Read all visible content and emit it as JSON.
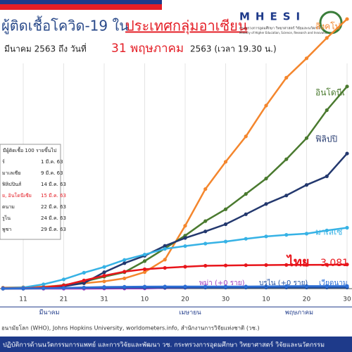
{
  "header": {
    "title": "ผู้ติดเชื้อโควิด-19 ใน",
    "title_highlight": "ประเทศกลุ่มอาเซียน",
    "subtitle_start": "มีนาคม 2563 ถึง วันที่",
    "subtitle_date": "31 พฤษภาคม",
    "subtitle_end": "2563 (เวลา 19.30 น.)",
    "logo": "MHESI",
    "ministry_th": "กระทรวงการอุดมศึกษา วิทยาศาสตร์ วิจัยและนวัตกรรม",
    "ministry_en": "Ministry of Higher Education, Science, Research and Innovation"
  },
  "inset": {
    "title": "มีผู้ติดเชื้อ 100 รายขึ้นไป",
    "rows": [
      [
        "ร์",
        "1 มี.ค. 63"
      ],
      [
        "มาเลเซีย",
        "9 มี.ค. 63"
      ],
      [
        "ฟิลิปปินส์",
        "14 มี.ค. 63"
      ],
      [
        "ย, อินโดนีเซีย",
        "15 มี.ค. 63"
      ],
      [
        "ดนาม",
        "22 มี.ค. 63"
      ],
      [
        "รูไน",
        "24 มี.ค. 63"
      ],
      [
        "พูชา",
        "29 มี.ค. 63"
      ]
    ]
  },
  "footer": {
    "source": "อนามัยโลก (WHO), Johns Hopkins University, worldometers.info, สำนักงานการวิจัยแห่งชาติ (วช.)",
    "bar": "ปฏิบัติการด้านนวัตกรรมการแพทย์ และการวิจัยและพัฒนา วช. กระทรวงการอุดมศึกษา วิทยาศาสตร์ วิจัยและนวัตกรรม"
  },
  "chart_data": {
    "type": "line",
    "categories": [
      null,
      "11",
      null,
      "21",
      null,
      "31",
      null,
      "10",
      null,
      "20",
      null,
      "30",
      null,
      "10",
      null,
      "20",
      null,
      "30"
    ],
    "months": [
      "มีนาคม",
      "เมษายน",
      "พฤษภาคม"
    ],
    "ylim": [
      0,
      35000
    ],
    "grid": true,
    "series": [
      {
        "name": "สิงคโป",
        "color": "#f4862d",
        "values": [
          130,
          178,
          243,
          432,
          683,
          926,
          1309,
          2108,
          3699,
          8014,
          12693,
          16169,
          19410,
          23336,
          26891,
          29364,
          31960,
          34366
        ]
      },
      {
        "name": "อินโดนีเ",
        "color": "#4a7a2f",
        "values": [
          2,
          34,
          134,
          450,
          893,
          1528,
          2092,
          3512,
          5136,
          6760,
          8607,
          10118,
          12071,
          14032,
          16496,
          19189,
          22750,
          25773
        ]
      },
      {
        "name": "ฟิลิปปิ",
        "color": "#23386e",
        "values": [
          5,
          49,
          142,
          307,
          707,
          2084,
          3246,
          4195,
          5453,
          6459,
          7294,
          8212,
          9485,
          10794,
          11876,
          13221,
          14319,
          17224
        ]
      },
      {
        "name": "มาเลเซี",
        "color": "#36b2e5",
        "values": [
          83,
          149,
          553,
          1183,
          2031,
          2766,
          3662,
          4346,
          5072,
          5425,
          5742,
          6002,
          6353,
          6656,
          6855,
          7009,
          7417,
          7762
        ]
      },
      {
        "name": "ไทย",
        "color": "#e8151b",
        "values": [
          48,
          59,
          147,
          411,
          1045,
          1651,
          2169,
          2473,
          2643,
          2792,
          2922,
          2954,
          2988,
          3009,
          3025,
          3034,
          3045,
          3081
        ],
        "value_labels": [
          null,
          null,
          null,
          null,
          null,
          null,
          null,
          null,
          null,
          null,
          null,
          null,
          null,
          null,
          null,
          null,
          null,
          "3,081"
        ]
      },
      {
        "name": "พม่า (+0 ราย)",
        "color": "#a040c0",
        "values": [
          0,
          0,
          0,
          0,
          0,
          15,
          21,
          27,
          85,
          111,
          146,
          151,
          161,
          178,
          182,
          191,
          201,
          224
        ]
      },
      {
        "name": "บรูไน (+0 ราย)",
        "color": "#1f4fa0",
        "values": [
          0,
          1,
          50,
          88,
          115,
          129,
          135,
          136,
          136,
          138,
          138,
          138,
          138,
          141,
          141,
          141,
          141,
          141
        ]
      },
      {
        "name": "เวียดนาม",
        "color": "#2d6fd6",
        "values": [
          17,
          39,
          61,
          94,
          153,
          212,
          241,
          257,
          268,
          268,
          270,
          270,
          271,
          288,
          314,
          324,
          326,
          328
        ]
      }
    ]
  }
}
